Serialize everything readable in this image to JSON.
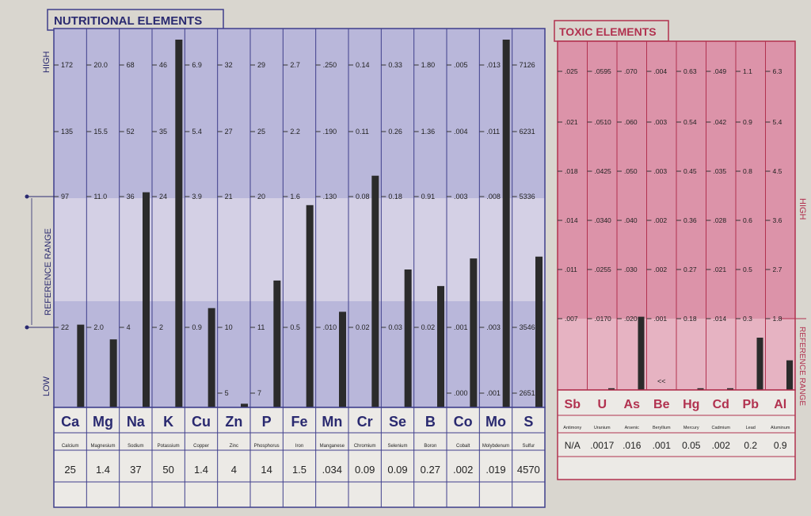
{
  "colors": {
    "nutri_fill": "#b9b7da",
    "nutri_band": "#d7d3e6",
    "nutri_border": "#3f3f8c",
    "nutri_text": "#2a2a70",
    "toxic_fill": "#dc93a9",
    "toxic_band": "#e6b3c2",
    "toxic_border": "#b1314f",
    "toxic_text": "#b1314f",
    "bar": "#2b2b2b",
    "paper": "#d9d6cf"
  },
  "nutritional": {
    "title": "NUTRITIONAL ELEMENTS",
    "left_labels": {
      "high": "HIGH",
      "low": "LOW",
      "range": "REFERENCE RANGE"
    },
    "elements": [
      {
        "symbol": "Ca",
        "name": "Calcium",
        "value": "25",
        "ticks": [
          "172",
          "135",
          "97",
          "",
          "22"
        ],
        "level": 0.225
      },
      {
        "symbol": "Mg",
        "name": "Magnesium",
        "value": "1.4",
        "ticks": [
          "20.0",
          "15.5",
          "11.0",
          "",
          "2.0"
        ],
        "level": 0.185
      },
      {
        "symbol": "Na",
        "name": "Sodium",
        "value": "37",
        "ticks": [
          "68",
          "52",
          "36",
          "",
          "4"
        ],
        "level": 0.585
      },
      {
        "symbol": "K",
        "name": "Potassium",
        "value": "50",
        "ticks": [
          "46",
          "35",
          "24",
          "",
          "2"
        ],
        "level": 1.0
      },
      {
        "symbol": "Cu",
        "name": "Copper",
        "value": "1.4",
        "ticks": [
          "6.9",
          "5.4",
          "3.9",
          "",
          "0.9"
        ],
        "level": 0.27
      },
      {
        "symbol": "Zn",
        "name": "Zinc",
        "value": "4",
        "ticks": [
          "32",
          "27",
          "21",
          "",
          "10",
          "5"
        ],
        "level": 0.01
      },
      {
        "symbol": "P",
        "name": "Phosphorus",
        "value": "14",
        "ticks": [
          "29",
          "25",
          "20",
          "",
          "11",
          "7"
        ],
        "level": 0.345
      },
      {
        "symbol": "Fe",
        "name": "Iron",
        "value": "1.5",
        "ticks": [
          "2.7",
          "2.2",
          "1.6",
          "",
          "0.5"
        ],
        "level": 0.55
      },
      {
        "symbol": "Mn",
        "name": "Manganese",
        "value": ".034",
        "ticks": [
          ".250",
          ".190",
          ".130",
          "",
          ".010"
        ],
        "level": 0.26
      },
      {
        "symbol": "Cr",
        "name": "Chromium",
        "value": "0.09",
        "ticks": [
          "0.14",
          "0.11",
          "0.08",
          "",
          "0.02"
        ],
        "level": 0.63
      },
      {
        "symbol": "Se",
        "name": "Selenium",
        "value": "0.09",
        "ticks": [
          "0.33",
          "0.26",
          "0.18",
          "",
          "0.03"
        ],
        "level": 0.375
      },
      {
        "symbol": "B",
        "name": "Boron",
        "value": "0.27",
        "ticks": [
          "1.80",
          "1.36",
          "0.91",
          "",
          "0.02"
        ],
        "level": 0.33
      },
      {
        "symbol": "Co",
        "name": "Cobalt",
        "value": ".002",
        "ticks": [
          ".005",
          ".004",
          ".003",
          "",
          ".001",
          ".000"
        ],
        "level": 0.405
      },
      {
        "symbol": "Mo",
        "name": "Molybdenum",
        "value": ".019",
        "ticks": [
          ".013",
          ".011",
          ".008",
          "",
          ".003",
          ".001"
        ],
        "level": 1.0
      },
      {
        "symbol": "S",
        "name": "Sulfur",
        "value": "4570",
        "ticks": [
          "7126",
          "6231",
          "5336",
          "",
          "3546",
          "2651"
        ],
        "level": 0.41
      }
    ]
  },
  "toxic": {
    "title": "TOXIC ELEMENTS",
    "right_labels": {
      "high": "HIGH",
      "range": "REFERENCE RANGE"
    },
    "elements": [
      {
        "symbol": "Sb",
        "name": "Antimony",
        "value": "N/A",
        "ticks": [
          ".025",
          ".021",
          ".018",
          ".014",
          ".011",
          ".007"
        ],
        "level": 0.0
      },
      {
        "symbol": "U",
        "name": "Uranium",
        "value": ".0017",
        "ticks": [
          ".0595",
          ".0510",
          ".0425",
          ".0340",
          ".0255",
          ".0170"
        ],
        "level": 0.005
      },
      {
        "symbol": "As",
        "name": "Arsenic",
        "value": ".016",
        "ticks": [
          ".070",
          ".060",
          ".050",
          ".040",
          ".030",
          ".020"
        ],
        "level": 0.21
      },
      {
        "symbol": "Be",
        "name": "Beryllium",
        "value": ".001",
        "ticks": [
          ".004",
          ".003",
          ".003",
          ".002",
          ".002",
          ".001"
        ],
        "level": 0.0,
        "note": "<<"
      },
      {
        "symbol": "Hg",
        "name": "Mercury",
        "value": "0.05",
        "ticks": [
          "0.63",
          "0.54",
          "0.45",
          "0.36",
          "0.27",
          "0.18"
        ],
        "level": 0.005
      },
      {
        "symbol": "Cd",
        "name": "Cadmium",
        "value": ".002",
        "ticks": [
          ".049",
          ".042",
          ".035",
          ".028",
          ".021",
          ".014"
        ],
        "level": 0.005
      },
      {
        "symbol": "Pb",
        "name": "Lead",
        "value": "0.2",
        "ticks": [
          "1.1",
          "0.9",
          "0.8",
          "0.6",
          "0.5",
          "0.3"
        ],
        "level": 0.15
      },
      {
        "symbol": "Al",
        "name": "Aluminum",
        "value": "0.9",
        "ticks": [
          "6.3",
          "5.4",
          "4.5",
          "3.6",
          "2.7",
          "1.8"
        ],
        "level": 0.085
      }
    ]
  }
}
